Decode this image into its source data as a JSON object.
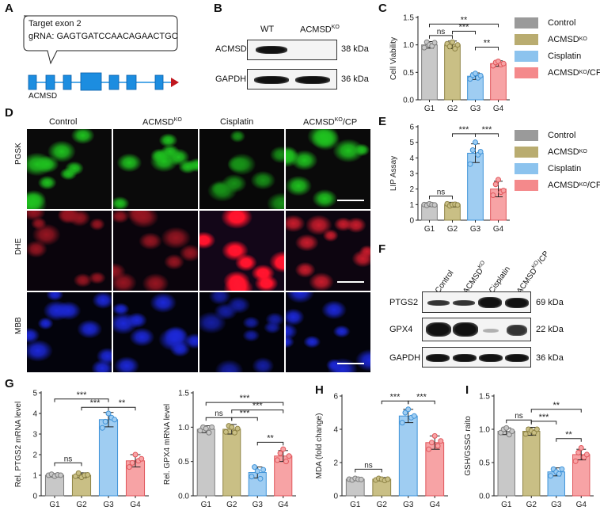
{
  "panels": {
    "A": "A",
    "B": "B",
    "C": "C",
    "D": "D",
    "E": "E",
    "F": "F",
    "G": "G",
    "H": "H",
    "I": "I"
  },
  "panelA": {
    "callout_line1": "Target exon 2",
    "callout_line2": "gRNA: GAGTGATCCAACAGAACTGC",
    "gene_label": "ACMSD",
    "exon_color": "#1c8de0",
    "arrow_color": "#c0181f"
  },
  "panelB": {
    "lanes": [
      "WT",
      "ACMSD",
      "KO"
    ],
    "rows": [
      {
        "name": "ACMSD",
        "size": "38 kDa"
      },
      {
        "name": "GAPDH",
        "size": "36 kDa"
      }
    ]
  },
  "panelD": {
    "columns": [
      "Control",
      "ACMSD",
      "KO",
      "Cisplatin",
      "ACMSD",
      "KO",
      "/CP"
    ],
    "rows": [
      "PGSK",
      "DHE",
      "MBB"
    ],
    "row_colors": [
      "#1fc21f",
      "#c81c2c",
      "#1c28d8"
    ]
  },
  "panelF": {
    "lanes": [
      "Control",
      "ACMSD",
      "KO",
      "Cisplatin",
      "ACMSD",
      "KO",
      "/CP"
    ],
    "rows": [
      {
        "name": "PTGS2",
        "size": "69 kDa"
      },
      {
        "name": "GPX4",
        "size": "22 kDa"
      },
      {
        "name": "GAPDH",
        "size": "36 kDa"
      }
    ]
  },
  "legend": {
    "items": [
      {
        "label": "Control",
        "sup": "",
        "color": "#9a9a9a"
      },
      {
        "label": "ACMSD",
        "sup": "KO",
        "color": "#b9ac70"
      },
      {
        "label": "Cisplatin",
        "sup": "",
        "color": "#8cc3ee"
      },
      {
        "label": "ACMSD",
        "sup": "KO",
        "suffix": "/CP",
        "color": "#f4898b"
      }
    ]
  },
  "chart_data": [
    {
      "id": "C",
      "type": "bar",
      "categories": [
        "G1",
        "G2",
        "G3",
        "G4"
      ],
      "values": [
        1.0,
        1.0,
        0.43,
        0.66
      ],
      "errors": [
        0.06,
        0.07,
        0.06,
        0.05
      ],
      "points": [
        [
          0.95,
          1.05,
          1.0,
          0.98,
          1.04
        ],
        [
          1.02,
          0.97,
          1.05,
          0.93,
          1.0
        ],
        [
          0.38,
          0.45,
          0.48,
          0.4,
          0.44
        ],
        [
          0.62,
          0.68,
          0.7,
          0.64,
          0.66
        ]
      ],
      "ylabel": "Cell Viability",
      "ylim": [
        0,
        1.5
      ],
      "yticks": [
        0.0,
        0.5,
        1.0,
        1.5
      ],
      "colors": [
        "#c8c8c8",
        "#c9bf85",
        "#9fcdf2",
        "#f7a3a5"
      ],
      "edge_colors": [
        "#7d7d7d",
        "#8f8446",
        "#3f93d8",
        "#e0565b"
      ],
      "sig": [
        {
          "from": 0,
          "to": 1,
          "level": 1.17,
          "label": "ns"
        },
        {
          "from": 1,
          "to": 2,
          "level": 1.25,
          "label": "***"
        },
        {
          "from": 0,
          "to": 3,
          "level": 1.38,
          "label": "**"
        },
        {
          "from": 2,
          "to": 3,
          "level": 0.96,
          "label": "**"
        }
      ]
    },
    {
      "id": "E",
      "type": "bar",
      "categories": [
        "G1",
        "G2",
        "G3",
        "G4"
      ],
      "values": [
        1.0,
        1.0,
        4.3,
        2.0
      ],
      "errors": [
        0.12,
        0.15,
        0.6,
        0.5
      ],
      "points": [
        [
          1.0,
          0.95,
          1.05,
          1.0,
          0.98
        ],
        [
          1.05,
          0.92,
          1.0,
          1.02,
          0.98
        ],
        [
          3.6,
          4.5,
          5.0,
          4.2,
          4.4
        ],
        [
          1.6,
          2.3,
          2.6,
          1.8,
          1.9
        ]
      ],
      "ylabel": "LIP Assay",
      "ylim": [
        0,
        6
      ],
      "yticks": [
        0,
        1,
        2,
        3,
        4,
        5,
        6
      ],
      "colors": [
        "#c8c8c8",
        "#c9bf85",
        "#9fcdf2",
        "#f7a3a5"
      ],
      "edge_colors": [
        "#7d7d7d",
        "#8f8446",
        "#3f93d8",
        "#e0565b"
      ],
      "sig": [
        {
          "from": 0,
          "to": 1,
          "level": 1.55,
          "label": "ns"
        },
        {
          "from": 1,
          "to": 2,
          "level": 5.55,
          "label": "***"
        },
        {
          "from": 2,
          "to": 3,
          "level": 5.55,
          "label": "***"
        }
      ]
    },
    {
      "id": "G1",
      "type": "bar",
      "categories": [
        "G1",
        "G2",
        "G3",
        "G4"
      ],
      "values": [
        1.0,
        1.0,
        3.7,
        1.7
      ],
      "errors": [
        0.08,
        0.12,
        0.35,
        0.3
      ],
      "points": [
        [
          1.0,
          1.05,
          0.95,
          1.02,
          1.0
        ],
        [
          0.95,
          1.1,
          0.9,
          1.0,
          1.02
        ],
        [
          3.3,
          3.6,
          4.0,
          3.8,
          3.7
        ],
        [
          1.4,
          1.6,
          2.0,
          1.7,
          1.8
        ]
      ],
      "ylabel": "Rel. PTGS2 mRNA level",
      "ylim": [
        0,
        5
      ],
      "yticks": [
        0,
        1,
        2,
        3,
        4,
        5
      ],
      "colors": [
        "#c8c8c8",
        "#c9bf85",
        "#9fcdf2",
        "#f7a3a5"
      ],
      "edge_colors": [
        "#7d7d7d",
        "#8f8446",
        "#3f93d8",
        "#e0565b"
      ],
      "sig": [
        {
          "from": 0,
          "to": 1,
          "level": 1.6,
          "label": "ns"
        },
        {
          "from": 0,
          "to": 2,
          "level": 4.7,
          "label": "***"
        },
        {
          "from": 1,
          "to": 2,
          "level": 4.3,
          "label": "***"
        },
        {
          "from": 2,
          "to": 3,
          "level": 4.3,
          "label": "**"
        }
      ]
    },
    {
      "id": "G2",
      "type": "bar",
      "categories": [
        "G1",
        "G2",
        "G3",
        "G4"
      ],
      "values": [
        0.97,
        0.97,
        0.34,
        0.58
      ],
      "errors": [
        0.05,
        0.07,
        0.08,
        0.08
      ],
      "points": [
        [
          0.95,
          1.0,
          0.98,
          0.92,
          1.0
        ],
        [
          0.93,
          1.02,
          1.0,
          0.92,
          0.98
        ],
        [
          0.28,
          0.42,
          0.36,
          0.25,
          0.38
        ],
        [
          0.52,
          0.62,
          0.68,
          0.5,
          0.58
        ]
      ],
      "ylabel": "Rel. GPX4 mRNA level",
      "ylim": [
        0,
        1.5
      ],
      "yticks": [
        0.0,
        0.5,
        1.0,
        1.5
      ],
      "colors": [
        "#c8c8c8",
        "#c9bf85",
        "#9fcdf2",
        "#f7a3a5"
      ],
      "edge_colors": [
        "#7d7d7d",
        "#8f8446",
        "#3f93d8",
        "#e0565b"
      ],
      "sig": [
        {
          "from": 0,
          "to": 1,
          "level": 1.14,
          "label": "ns"
        },
        {
          "from": 1,
          "to": 2,
          "level": 1.14,
          "label": "***"
        },
        {
          "from": 0,
          "to": 3,
          "level": 1.36,
          "label": "***"
        },
        {
          "from": 1,
          "to": 3,
          "level": 1.25,
          "label": "***"
        },
        {
          "from": 2,
          "to": 3,
          "level": 0.78,
          "label": "**"
        }
      ]
    },
    {
      "id": "H",
      "type": "bar",
      "categories": [
        "G1",
        "G2",
        "G3",
        "G4"
      ],
      "values": [
        1.0,
        1.0,
        4.8,
        3.2
      ],
      "errors": [
        0.08,
        0.1,
        0.4,
        0.4
      ],
      "points": [
        [
          1.0,
          0.95,
          1.05,
          1.0,
          0.98
        ],
        [
          0.95,
          1.05,
          1.0,
          0.92,
          1.0
        ],
        [
          4.4,
          5.0,
          5.2,
          4.7,
          4.8
        ],
        [
          2.8,
          3.2,
          3.6,
          3.0,
          3.3
        ]
      ],
      "ylabel": "MDA (fold change)",
      "ylim": [
        0,
        6
      ],
      "yticks": [
        0,
        2,
        4,
        6
      ],
      "colors": [
        "#c8c8c8",
        "#c9bf85",
        "#9fcdf2",
        "#f7a3a5"
      ],
      "edge_colors": [
        "#7d7d7d",
        "#8f8446",
        "#3f93d8",
        "#e0565b"
      ],
      "sig": [
        {
          "from": 0,
          "to": 1,
          "level": 1.6,
          "label": "ns"
        },
        {
          "from": 1,
          "to": 2,
          "level": 5.7,
          "label": "***"
        },
        {
          "from": 2,
          "to": 3,
          "level": 5.7,
          "label": "***"
        }
      ]
    },
    {
      "id": "I",
      "type": "bar",
      "categories": [
        "G1",
        "G2",
        "G3",
        "G4"
      ],
      "values": [
        0.97,
        0.97,
        0.36,
        0.62
      ],
      "errors": [
        0.05,
        0.06,
        0.06,
        0.08
      ],
      "points": [
        [
          0.95,
          1.0,
          1.02,
          0.92,
          0.97
        ],
        [
          0.93,
          1.0,
          0.98,
          0.95,
          1.0
        ],
        [
          0.3,
          0.4,
          0.36,
          0.33,
          0.4
        ],
        [
          0.52,
          0.65,
          0.72,
          0.58,
          0.62
        ]
      ],
      "ylabel": "GSH/GSSG raito",
      "ylim": [
        0,
        1.5
      ],
      "yticks": [
        0.0,
        0.5,
        1.0,
        1.5
      ],
      "colors": [
        "#c8c8c8",
        "#c9bf85",
        "#9fcdf2",
        "#f7a3a5"
      ],
      "edge_colors": [
        "#7d7d7d",
        "#8f8446",
        "#3f93d8",
        "#e0565b"
      ],
      "sig": [
        {
          "from": 0,
          "to": 1,
          "level": 1.14,
          "label": "ns"
        },
        {
          "from": 1,
          "to": 2,
          "level": 1.12,
          "label": "***"
        },
        {
          "from": 1,
          "to": 3,
          "level": 1.3,
          "label": "**"
        },
        {
          "from": 2,
          "to": 3,
          "level": 0.86,
          "label": "**"
        }
      ]
    }
  ]
}
